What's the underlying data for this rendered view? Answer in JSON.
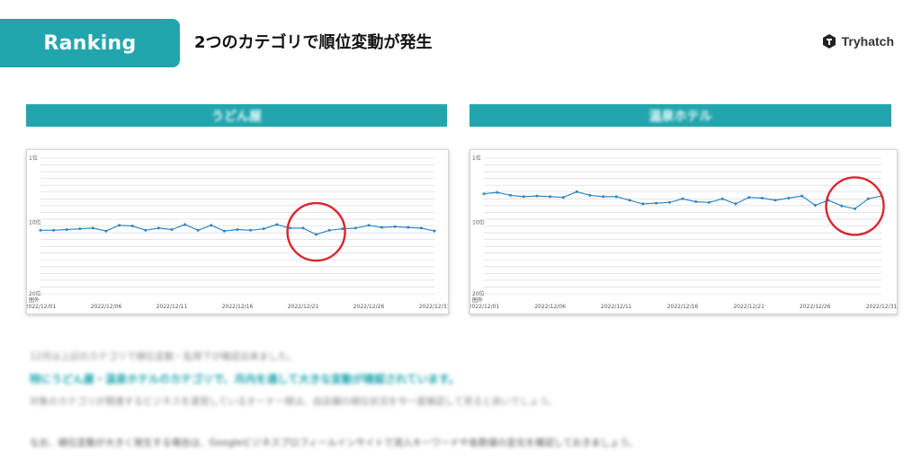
{
  "header": {
    "tab_label": "Ranking",
    "title": "2つのカテゴリで順位変動が発生",
    "brand": "Tryhatch"
  },
  "charts": [
    {
      "banner": "うどん屋"
    },
    {
      "banner": "温泉ホテル"
    }
  ],
  "chart_data": [
    {
      "type": "line",
      "title": "",
      "y_axis": {
        "reverse": true,
        "ylim": [
          1,
          20
        ],
        "tick_labels": [
          {
            "v": 1,
            "label": "1位"
          },
          {
            "v": 10,
            "label": "10位"
          },
          {
            "v": 20,
            "label": "20位\n圏外"
          }
        ]
      },
      "x_tick_labels": [
        "2022/12/01",
        "2022/12/06",
        "2022/12/11",
        "2022/12/16",
        "2022/12/21",
        "2022/12/26",
        "2022/12/31"
      ],
      "x_tick_days": [
        1,
        6,
        11,
        16,
        21,
        26,
        31
      ],
      "days": [
        1,
        2,
        3,
        4,
        5,
        6,
        7,
        8,
        9,
        10,
        11,
        12,
        13,
        14,
        15,
        16,
        17,
        18,
        19,
        20,
        21,
        22,
        23,
        24,
        25,
        26,
        27,
        28,
        29,
        30,
        31
      ],
      "values": [
        11.1,
        11.1,
        11.0,
        10.9,
        10.8,
        11.2,
        10.4,
        10.5,
        11.1,
        10.8,
        11.0,
        10.3,
        11.1,
        10.4,
        11.2,
        11.0,
        11.1,
        10.9,
        10.3,
        10.8,
        10.8,
        11.7,
        11.1,
        10.9,
        10.8,
        10.4,
        10.7,
        10.6,
        10.7,
        10.8,
        11.2
      ],
      "grid": true,
      "highlight_day": 22
    },
    {
      "type": "line",
      "title": "",
      "y_axis": {
        "reverse": true,
        "ylim": [
          1,
          20
        ],
        "tick_labels": [
          {
            "v": 1,
            "label": "1位"
          },
          {
            "v": 10,
            "label": "10位"
          },
          {
            "v": 20,
            "label": "20位\n圏外"
          }
        ]
      },
      "x_tick_labels": [
        "2022/12/01",
        "2022/12/06",
        "2022/12/11",
        "2022/12/16",
        "2022/12/21",
        "2022/12/26",
        "2022/12/31"
      ],
      "x_tick_days": [
        1,
        6,
        11,
        16,
        21,
        26,
        31
      ],
      "days": [
        1,
        2,
        3,
        4,
        5,
        6,
        7,
        8,
        9,
        10,
        11,
        12,
        13,
        14,
        15,
        16,
        17,
        18,
        19,
        20,
        21,
        22,
        23,
        24,
        25,
        26,
        27,
        28,
        29,
        30,
        31
      ],
      "values": [
        6.0,
        5.8,
        6.2,
        6.4,
        6.3,
        6.4,
        6.5,
        5.7,
        6.2,
        6.4,
        6.4,
        6.9,
        7.4,
        7.3,
        7.2,
        6.7,
        7.1,
        7.2,
        6.7,
        7.4,
        6.5,
        6.6,
        6.9,
        6.6,
        6.3,
        7.6,
        6.9,
        7.7,
        8.1,
        6.7,
        6.3
      ],
      "grid": true,
      "highlight_day": 29
    }
  ],
  "paragraphs": [
    "12月は上記のカテゴリで順位変動・乱降下が確認出来ました。",
    "特にうどん屋・温泉ホテルのカテゴリで、月内を通して大きな変動が確認されています。",
    "対象のカテゴリが関連するビジネスを運営しているオーナー様は、自店舗の順位状況を今一度確認して見ると良いでしょう。",
    "なお、順位変動が大きく発生する場合は、Googleビジネスプロフィールインサイトで流入キーワードや各数値の変化を確認しておきましょう。"
  ],
  "colors": {
    "accent": "#22a6ae",
    "line": "#2e86c1",
    "circle": "#d9262c",
    "grid": "#d9cfe0"
  }
}
